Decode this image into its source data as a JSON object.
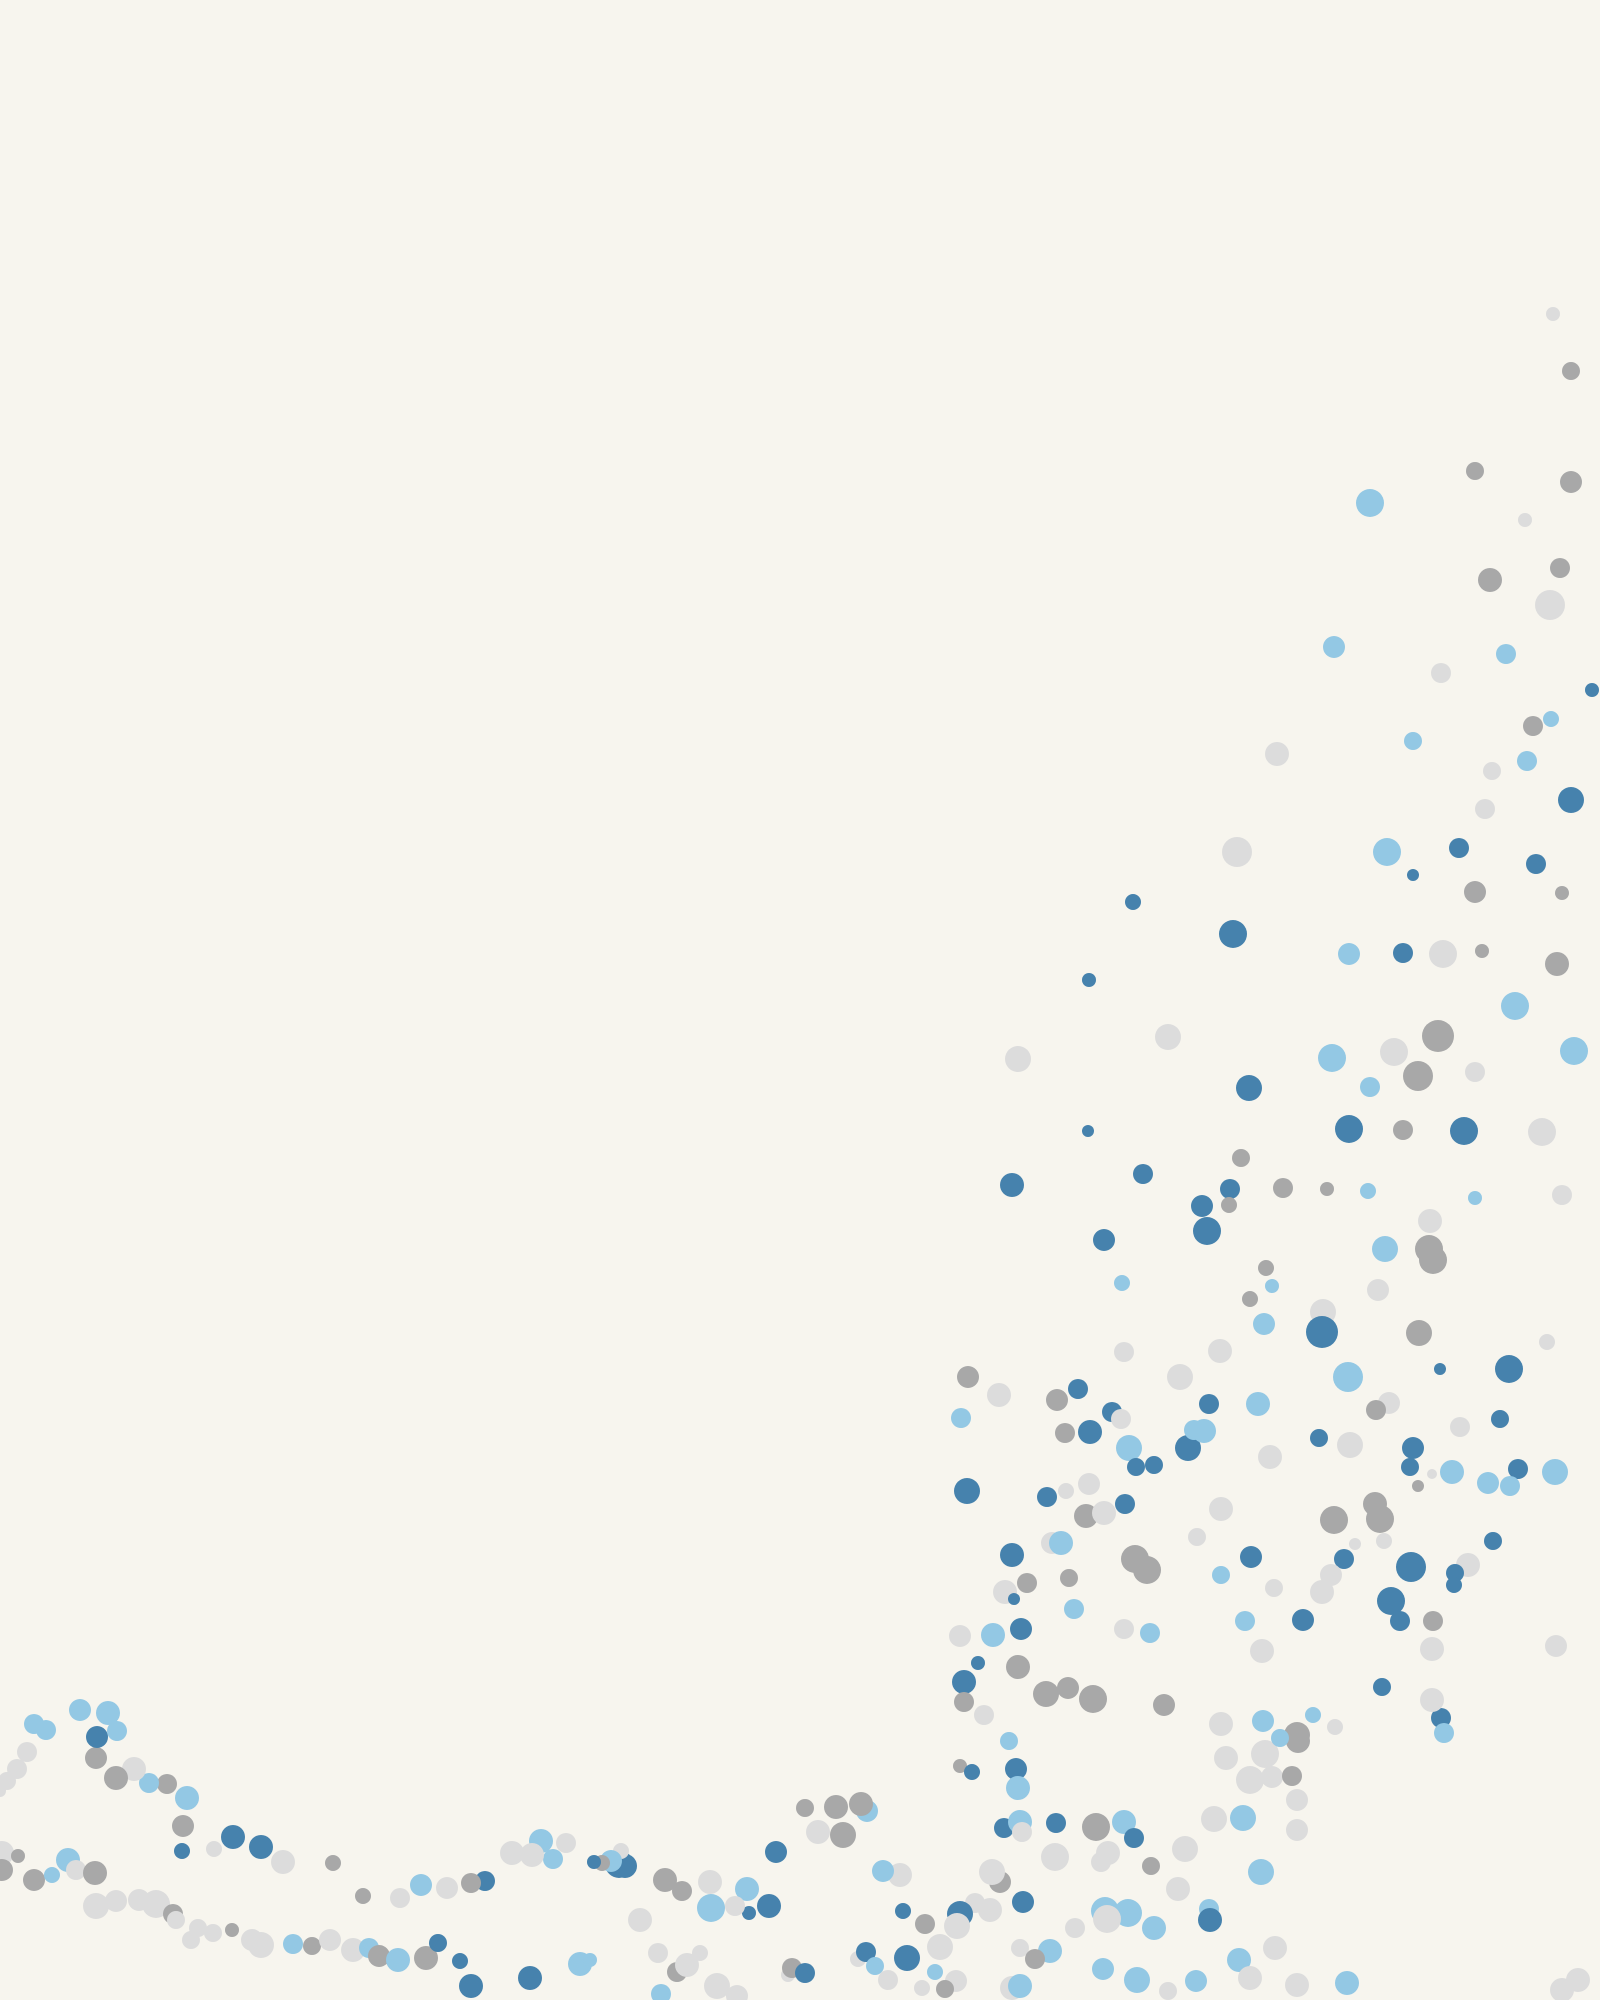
{
  "palette": {
    "background": "#f7f5ee",
    "dark_blue": "#4682ad",
    "light_blue": "#93c8e4",
    "gray": "#a8a8a8",
    "light_gray": "#dcdcdc"
  }
}
